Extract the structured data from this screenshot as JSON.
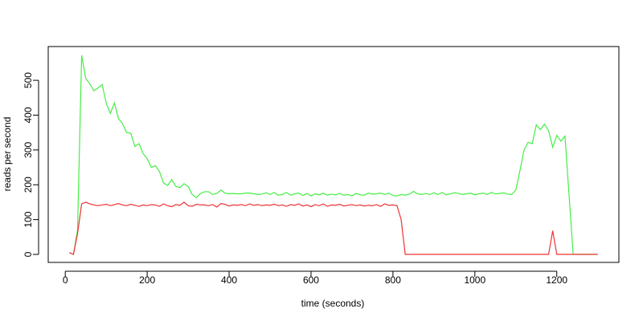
{
  "chart_data": {
    "type": "line",
    "xlabel": "time (seconds)",
    "ylabel": "reads per second",
    "x": [
      10,
      20,
      30,
      40,
      50,
      60,
      70,
      80,
      90,
      100,
      110,
      120,
      130,
      140,
      150,
      160,
      170,
      180,
      190,
      200,
      210,
      220,
      230,
      240,
      250,
      260,
      270,
      280,
      290,
      300,
      310,
      320,
      330,
      340,
      350,
      360,
      370,
      380,
      390,
      400,
      410,
      420,
      430,
      440,
      450,
      460,
      470,
      480,
      490,
      500,
      510,
      520,
      530,
      540,
      550,
      560,
      570,
      580,
      590,
      600,
      610,
      620,
      630,
      640,
      650,
      660,
      670,
      680,
      690,
      700,
      710,
      720,
      730,
      740,
      750,
      760,
      770,
      780,
      790,
      800,
      810,
      820,
      830,
      840,
      850,
      860,
      870,
      880,
      890,
      900,
      910,
      920,
      930,
      940,
      950,
      960,
      970,
      980,
      990,
      1000,
      1010,
      1020,
      1030,
      1040,
      1050,
      1060,
      1070,
      1080,
      1090,
      1100,
      1110,
      1120,
      1130,
      1140,
      1150,
      1160,
      1170,
      1180,
      1190,
      1200,
      1210,
      1220,
      1230,
      1240,
      1250,
      1260,
      1270,
      1280,
      1290,
      1300
    ],
    "series": [
      {
        "color": "#44ee44",
        "values": [
          5,
          0,
          70,
          572,
          505,
          490,
          470,
          478,
          488,
          435,
          405,
          435,
          390,
          375,
          350,
          348,
          310,
          318,
          290,
          275,
          250,
          255,
          238,
          205,
          198,
          215,
          195,
          192,
          203,
          195,
          172,
          163,
          175,
          180,
          180,
          172,
          175,
          185,
          176,
          174,
          175,
          174,
          174,
          176,
          176,
          174,
          172,
          173,
          177,
          172,
          178,
          170,
          172,
          178,
          170,
          174,
          176,
          169,
          175,
          168,
          174,
          171,
          176,
          170,
          173,
          171,
          175,
          170,
          172,
          168,
          175,
          171,
          170,
          176,
          173,
          174,
          176,
          172,
          176,
          169,
          168,
          172,
          170,
          173,
          181,
          174,
          172,
          175,
          172,
          177,
          172,
          178,
          171,
          174,
          177,
          175,
          172,
          174,
          176,
          171,
          174,
          176,
          172,
          178,
          174,
          175,
          177,
          173,
          172,
          185,
          240,
          300,
          322,
          318,
          372,
          358,
          374,
          355,
          308,
          342,
          325,
          340,
          170,
          0,
          0,
          0,
          0,
          0,
          0,
          0
        ]
      },
      {
        "color": "#ee3333",
        "values": [
          5,
          0,
          60,
          145,
          150,
          145,
          142,
          140,
          142,
          144,
          140,
          143,
          146,
          142,
          140,
          144,
          141,
          138,
          142,
          140,
          143,
          142,
          138,
          145,
          140,
          137,
          143,
          141,
          150,
          140,
          138,
          144,
          142,
          142,
          140,
          143,
          136,
          146,
          144,
          139,
          142,
          141,
          143,
          140,
          145,
          141,
          143,
          140,
          142,
          141,
          144,
          140,
          142,
          138,
          143,
          141,
          145,
          139,
          142,
          137,
          143,
          140,
          145,
          138,
          142,
          141,
          144,
          139,
          141,
          143,
          140,
          142,
          139,
          141,
          140,
          143,
          138,
          145,
          141,
          142,
          140,
          100,
          0,
          0,
          0,
          0,
          0,
          0,
          0,
          0,
          0,
          0,
          0,
          0,
          0,
          0,
          0,
          0,
          0,
          0,
          0,
          0,
          0,
          0,
          0,
          0,
          0,
          0,
          0,
          0,
          0,
          0,
          0,
          0,
          0,
          0,
          0,
          0,
          68,
          0,
          0,
          0,
          0,
          0,
          0,
          0,
          0,
          0,
          0,
          0
        ]
      }
    ],
    "xlim": [
      -41.6,
      1351.6
    ],
    "ylim": [
      -23,
      597
    ],
    "xticks": [
      0,
      200,
      400,
      600,
      800,
      1000,
      1200
    ],
    "yticks": [
      0,
      100,
      200,
      300,
      400,
      500
    ]
  }
}
